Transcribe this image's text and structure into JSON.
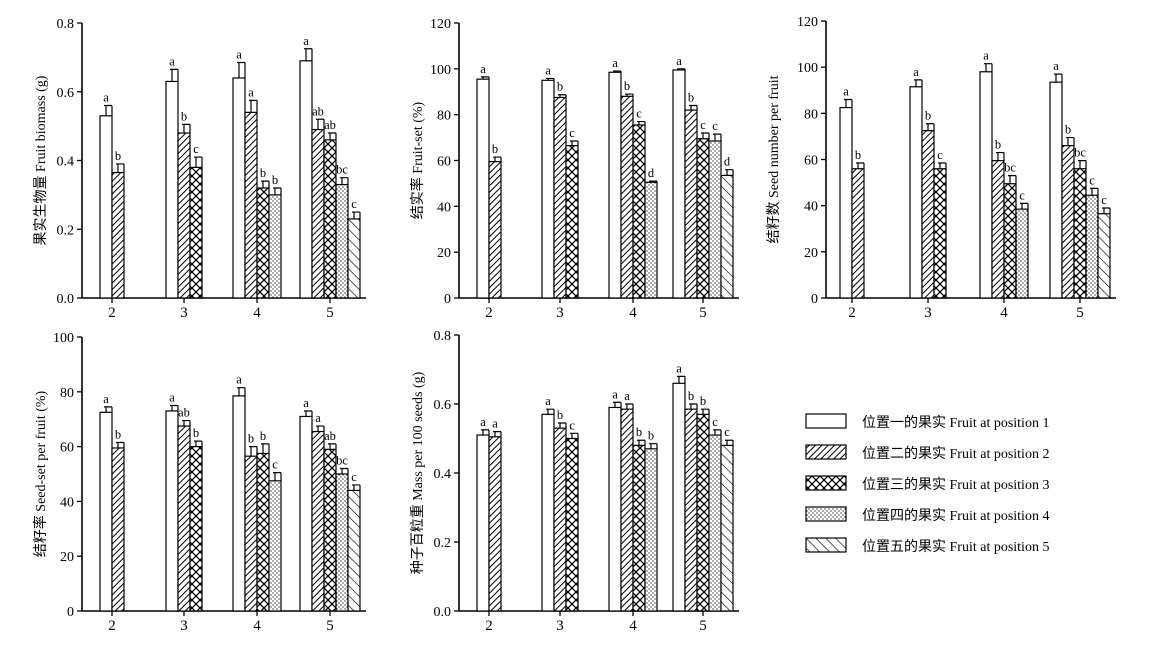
{
  "legend": {
    "items": [
      {
        "label": "位置一的果实 Fruit at position 1",
        "pattern": "open"
      },
      {
        "label": "位置二的果实 Fruit at position 2",
        "pattern": "diag-dense"
      },
      {
        "label": "位置三的果实 Fruit at position 3",
        "pattern": "cross"
      },
      {
        "label": "位置四的果实 Fruit at position 4",
        "pattern": "dots"
      },
      {
        "label": "位置五的果实 Fruit at position 5",
        "pattern": "backslash"
      }
    ]
  },
  "chart_data": [
    {
      "type": "bar",
      "ylabel": "果实生物量  Fruit biomass (g)",
      "ylim": [
        0,
        0.8
      ],
      "yticks": [
        "0.0",
        "0.2",
        "0.4",
        "0.6",
        "0.8"
      ],
      "categories": [
        "2",
        "3",
        "4",
        "5"
      ],
      "groups": [
        {
          "category": "2",
          "bars": [
            {
              "position": 1,
              "value": 0.53,
              "err": 0.03,
              "letter": "a"
            },
            {
              "position": 2,
              "value": 0.365,
              "err": 0.025,
              "letter": "b"
            }
          ]
        },
        {
          "category": "3",
          "bars": [
            {
              "position": 1,
              "value": 0.63,
              "err": 0.035,
              "letter": "a"
            },
            {
              "position": 2,
              "value": 0.48,
              "err": 0.025,
              "letter": "b"
            },
            {
              "position": 3,
              "value": 0.38,
              "err": 0.03,
              "letter": "c"
            }
          ]
        },
        {
          "category": "4",
          "bars": [
            {
              "position": 1,
              "value": 0.64,
              "err": 0.045,
              "letter": "a"
            },
            {
              "position": 2,
              "value": 0.54,
              "err": 0.035,
              "letter": "a"
            },
            {
              "position": 3,
              "value": 0.32,
              "err": 0.02,
              "letter": "b"
            },
            {
              "position": 4,
              "value": 0.3,
              "err": 0.02,
              "letter": "b"
            }
          ]
        },
        {
          "category": "5",
          "bars": [
            {
              "position": 1,
              "value": 0.69,
              "err": 0.035,
              "letter": "a"
            },
            {
              "position": 2,
              "value": 0.49,
              "err": 0.03,
              "letter": "ab"
            },
            {
              "position": 3,
              "value": 0.46,
              "err": 0.02,
              "letter": "ab"
            },
            {
              "position": 4,
              "value": 0.33,
              "err": 0.02,
              "letter": "bc"
            },
            {
              "position": 5,
              "value": 0.23,
              "err": 0.02,
              "letter": "c"
            }
          ]
        }
      ]
    },
    {
      "type": "bar",
      "ylabel": "结实率 Fruit-set (%)",
      "ylim": [
        0,
        120
      ],
      "yticks": [
        "0",
        "20",
        "40",
        "60",
        "80",
        "100",
        "120"
      ],
      "categories": [
        "2",
        "3",
        "4",
        "5"
      ],
      "groups": [
        {
          "category": "2",
          "bars": [
            {
              "position": 1,
              "value": 95.5,
              "err": 1.0,
              "letter": "a"
            },
            {
              "position": 2,
              "value": 59.5,
              "err": 2.0,
              "letter": "b"
            }
          ]
        },
        {
          "category": "3",
          "bars": [
            {
              "position": 1,
              "value": 95,
              "err": 0.8,
              "letter": "a"
            },
            {
              "position": 2,
              "value": 87.5,
              "err": 1.2,
              "letter": "b"
            },
            {
              "position": 3,
              "value": 66.5,
              "err": 2.0,
              "letter": "c"
            }
          ]
        },
        {
          "category": "4",
          "bars": [
            {
              "position": 1,
              "value": 98.5,
              "err": 0.5,
              "letter": "a"
            },
            {
              "position": 2,
              "value": 88,
              "err": 1.0,
              "letter": "b"
            },
            {
              "position": 3,
              "value": 75.5,
              "err": 1.5,
              "letter": "c"
            },
            {
              "position": 4,
              "value": 50.5,
              "err": 0.5,
              "letter": "d"
            }
          ]
        },
        {
          "category": "5",
          "bars": [
            {
              "position": 1,
              "value": 99.5,
              "err": 0.5,
              "letter": "a"
            },
            {
              "position": 2,
              "value": 82,
              "err": 2.0,
              "letter": "b"
            },
            {
              "position": 3,
              "value": 69.5,
              "err": 2.5,
              "letter": "c"
            },
            {
              "position": 4,
              "value": 68.5,
              "err": 3.0,
              "letter": "c"
            },
            {
              "position": 5,
              "value": 53.5,
              "err": 2.5,
              "letter": "d"
            }
          ]
        }
      ]
    },
    {
      "type": "bar",
      "ylabel": "结籽数  Seed number per fruit",
      "ylim": [
        0,
        120
      ],
      "yticks": [
        "0",
        "20",
        "40",
        "60",
        "80",
        "100",
        "120"
      ],
      "categories": [
        "2",
        "3",
        "4",
        "5"
      ],
      "groups": [
        {
          "category": "2",
          "bars": [
            {
              "position": 1,
              "value": 82.5,
              "err": 3.5,
              "letter": "a"
            },
            {
              "position": 2,
              "value": 56,
              "err": 2.5,
              "letter": "b"
            }
          ]
        },
        {
          "category": "3",
          "bars": [
            {
              "position": 1,
              "value": 91.5,
              "err": 3.0,
              "letter": "a"
            },
            {
              "position": 2,
              "value": 72.5,
              "err": 3.0,
              "letter": "b"
            },
            {
              "position": 3,
              "value": 56,
              "err": 2.5,
              "letter": "c"
            }
          ]
        },
        {
          "category": "4",
          "bars": [
            {
              "position": 1,
              "value": 98,
              "err": 3.5,
              "letter": "a"
            },
            {
              "position": 2,
              "value": 59.5,
              "err": 3.5,
              "letter": "b"
            },
            {
              "position": 3,
              "value": 49.5,
              "err": 3.5,
              "letter": "bc"
            },
            {
              "position": 4,
              "value": 38.5,
              "err": 2.5,
              "letter": "c"
            }
          ]
        },
        {
          "category": "5",
          "bars": [
            {
              "position": 1,
              "value": 93.5,
              "err": 3.5,
              "letter": "a"
            },
            {
              "position": 2,
              "value": 66,
              "err": 3.5,
              "letter": "b"
            },
            {
              "position": 3,
              "value": 56,
              "err": 3.5,
              "letter": "bc"
            },
            {
              "position": 4,
              "value": 44.5,
              "err": 3.0,
              "letter": "c"
            },
            {
              "position": 5,
              "value": 36.5,
              "err": 2.5,
              "letter": "c"
            }
          ]
        }
      ]
    },
    {
      "type": "bar",
      "ylabel": "结籽率 Seed-set per fruit (%)",
      "ylim": [
        0,
        100
      ],
      "yticks": [
        "0",
        "20",
        "40",
        "60",
        "80",
        "100"
      ],
      "categories": [
        "2",
        "3",
        "4",
        "5"
      ],
      "groups": [
        {
          "category": "2",
          "bars": [
            {
              "position": 1,
              "value": 72.5,
              "err": 2.0,
              "letter": "a"
            },
            {
              "position": 2,
              "value": 59.5,
              "err": 2.0,
              "letter": "b"
            }
          ]
        },
        {
          "category": "3",
          "bars": [
            {
              "position": 1,
              "value": 73,
              "err": 2.0,
              "letter": "a"
            },
            {
              "position": 2,
              "value": 67.5,
              "err": 2.0,
              "letter": "ab"
            },
            {
              "position": 3,
              "value": 60,
              "err": 2.0,
              "letter": "b"
            }
          ]
        },
        {
          "category": "4",
          "bars": [
            {
              "position": 1,
              "value": 78.5,
              "err": 3.0,
              "letter": "a"
            },
            {
              "position": 2,
              "value": 56.5,
              "err": 3.5,
              "letter": "b"
            },
            {
              "position": 3,
              "value": 57.5,
              "err": 3.5,
              "letter": "b"
            },
            {
              "position": 4,
              "value": 47.5,
              "err": 3.0,
              "letter": "c"
            }
          ]
        },
        {
          "category": "5",
          "bars": [
            {
              "position": 1,
              "value": 71,
              "err": 2.0,
              "letter": "a"
            },
            {
              "position": 2,
              "value": 65.5,
              "err": 2.0,
              "letter": "a"
            },
            {
              "position": 3,
              "value": 59,
              "err": 2.0,
              "letter": "ab"
            },
            {
              "position": 4,
              "value": 50,
              "err": 2.0,
              "letter": "bc"
            },
            {
              "position": 5,
              "value": 44,
              "err": 2.0,
              "letter": "c"
            }
          ]
        }
      ]
    },
    {
      "type": "bar",
      "ylabel": "种子百粒重  Mass per 100 seeds (g)",
      "ylim": [
        0,
        0.8
      ],
      "yticks": [
        "0.0",
        "0.2",
        "0.4",
        "0.6",
        "0.8"
      ],
      "categories": [
        "2",
        "3",
        "4",
        "5"
      ],
      "groups": [
        {
          "category": "2",
          "bars": [
            {
              "position": 1,
              "value": 0.51,
              "err": 0.015,
              "letter": "a"
            },
            {
              "position": 2,
              "value": 0.505,
              "err": 0.015,
              "letter": "a"
            }
          ]
        },
        {
          "category": "3",
          "bars": [
            {
              "position": 1,
              "value": 0.57,
              "err": 0.015,
              "letter": "a"
            },
            {
              "position": 2,
              "value": 0.53,
              "err": 0.015,
              "letter": "b"
            },
            {
              "position": 3,
              "value": 0.5,
              "err": 0.015,
              "letter": "c"
            }
          ]
        },
        {
          "category": "4",
          "bars": [
            {
              "position": 1,
              "value": 0.59,
              "err": 0.015,
              "letter": "a"
            },
            {
              "position": 2,
              "value": 0.585,
              "err": 0.015,
              "letter": "a"
            },
            {
              "position": 3,
              "value": 0.48,
              "err": 0.015,
              "letter": "b"
            },
            {
              "position": 4,
              "value": 0.47,
              "err": 0.015,
              "letter": "b"
            }
          ]
        },
        {
          "category": "5",
          "bars": [
            {
              "position": 1,
              "value": 0.66,
              "err": 0.02,
              "letter": "a"
            },
            {
              "position": 2,
              "value": 0.585,
              "err": 0.015,
              "letter": "b"
            },
            {
              "position": 3,
              "value": 0.57,
              "err": 0.015,
              "letter": "b"
            },
            {
              "position": 4,
              "value": 0.51,
              "err": 0.015,
              "letter": "c"
            },
            {
              "position": 5,
              "value": 0.48,
              "err": 0.015,
              "letter": "c"
            }
          ]
        }
      ]
    }
  ]
}
